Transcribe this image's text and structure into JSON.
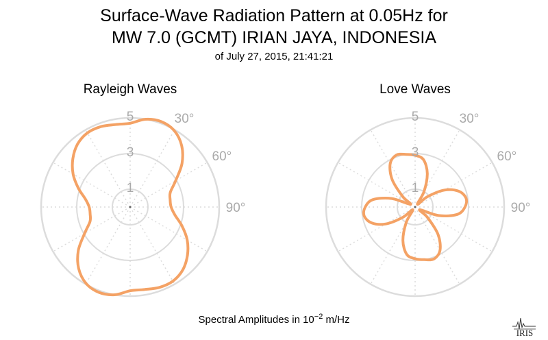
{
  "title": {
    "line1": "Surface-Wave Radiation Pattern at 0.05Hz for",
    "line2": "MW 7.0 (GCMT) IRIAN JAYA, INDONESIA",
    "line3": "of July 27, 2015, 21:41:21"
  },
  "footer": {
    "prefix": "Spectral Amplitudes in 10",
    "exponent": "−2",
    "suffix": " m/Hz"
  },
  "logo_text": "IRIS",
  "colors": {
    "curve": "#f4a265",
    "grid": "#dcdcdc",
    "label": "#aaaaaa"
  },
  "chart_data": [
    {
      "type": "polar-line",
      "title": "Rayleigh Waves",
      "radial_ticks": [
        1,
        3,
        5
      ],
      "angle_ticks": [
        "30°",
        "60°",
        "90°"
      ],
      "rmax": 5,
      "grid": true,
      "azimuth_deg": [
        0,
        10,
        20,
        30,
        40,
        50,
        60,
        70,
        80,
        90,
        100,
        110,
        120,
        130,
        140,
        150,
        160,
        170,
        180,
        190,
        200,
        210,
        220,
        230,
        240,
        250,
        260,
        270,
        280,
        290,
        300,
        310,
        320,
        330,
        340,
        350
      ],
      "amplitude": [
        4.7,
        5.0,
        5.1,
        4.95,
        4.5,
        3.8,
        2.95,
        2.4,
        2.28,
        2.3,
        2.55,
        3.1,
        3.7,
        4.2,
        4.6,
        4.8,
        4.8,
        4.7,
        4.7,
        5.0,
        5.1,
        4.95,
        4.5,
        3.8,
        2.95,
        2.4,
        2.28,
        2.3,
        2.55,
        3.1,
        3.7,
        4.2,
        4.6,
        4.8,
        4.8,
        4.7
      ]
    },
    {
      "type": "polar-line",
      "title": "Love Waves",
      "radial_ticks": [
        1,
        3,
        5
      ],
      "angle_ticks": [
        "30°",
        "60°",
        "90°"
      ],
      "rmax": 5,
      "grid": true,
      "azimuth_deg": [
        0,
        10,
        20,
        30,
        40,
        50,
        60,
        70,
        80,
        90,
        100,
        110,
        120,
        130,
        140,
        150,
        160,
        170,
        180,
        190,
        200,
        210,
        220,
        230,
        240,
        250,
        260,
        270,
        280,
        290,
        300,
        310,
        320,
        330,
        340,
        350
      ],
      "amplitude": [
        2.9,
        2.7,
        2.0,
        1.0,
        0.2,
        0.9,
        1.9,
        2.6,
        2.9,
        2.8,
        2.4,
        1.4,
        0.3,
        0.9,
        2.0,
        2.8,
        3.1,
        3.0,
        2.9,
        2.7,
        2.0,
        1.0,
        0.2,
        0.9,
        1.9,
        2.6,
        2.9,
        2.8,
        2.4,
        1.4,
        0.3,
        0.9,
        2.0,
        2.8,
        3.1,
        3.0
      ]
    }
  ]
}
